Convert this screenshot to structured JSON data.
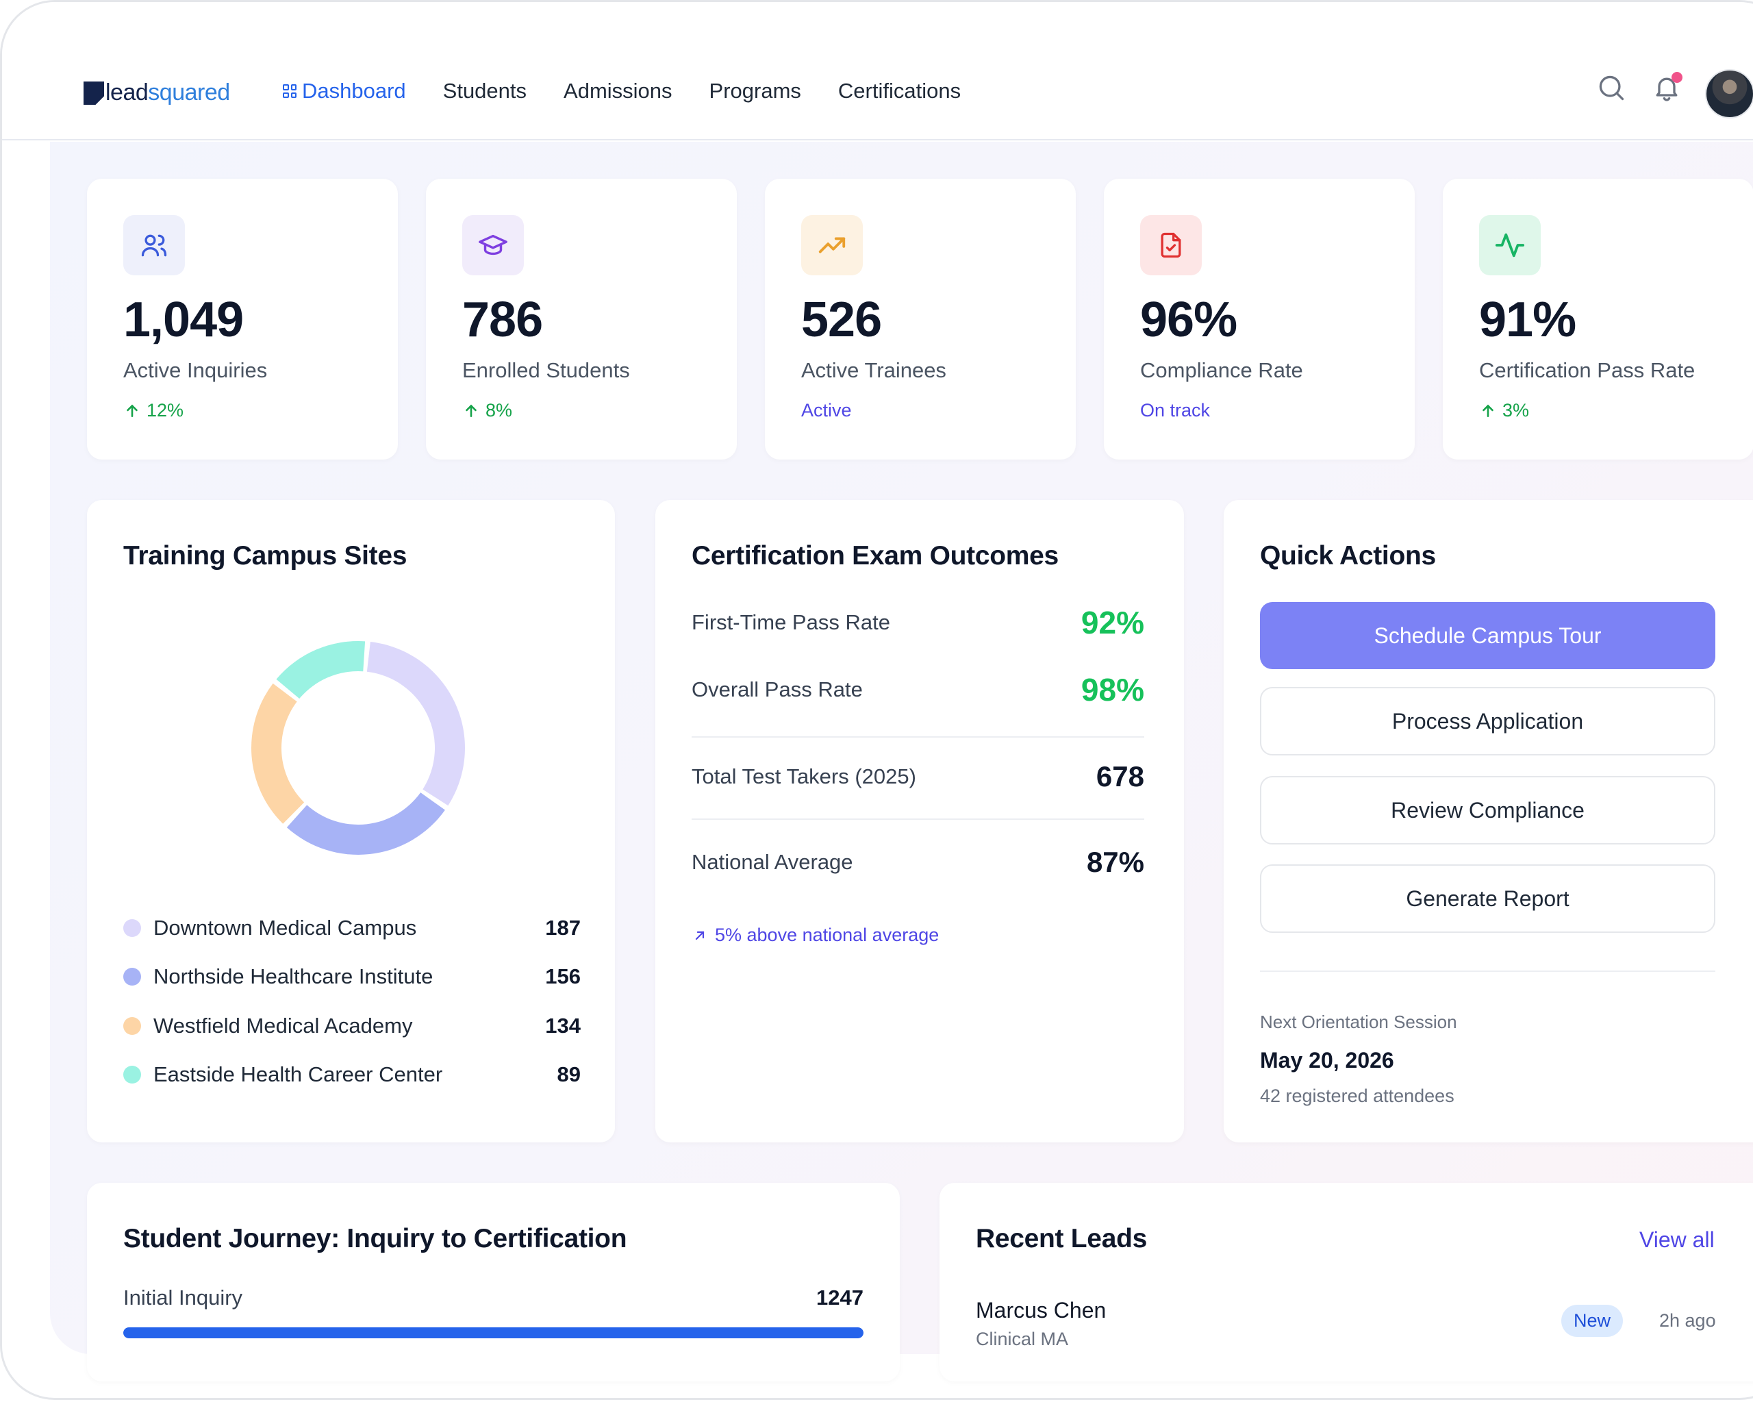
{
  "brand": {
    "logo_part1": "lead",
    "logo_part2": "squared"
  },
  "nav": {
    "items": [
      {
        "label": "Dashboard"
      },
      {
        "label": "Students"
      },
      {
        "label": "Admissions"
      },
      {
        "label": "Programs"
      },
      {
        "label": "Certifications"
      }
    ],
    "active": "Dashboard"
  },
  "header": {
    "icons": [
      "search-icon",
      "bell-icon"
    ],
    "has_notification": true
  },
  "kpis": [
    {
      "value": "1,049",
      "label": "Active Inquiries",
      "meta": "12%",
      "meta_type": "up",
      "icon": "users-icon",
      "icon_bg": "#eef0fb",
      "icon_color": "#3b5bdb"
    },
    {
      "value": "786",
      "label": "Enrolled Students",
      "meta": "8%",
      "meta_type": "up",
      "icon": "graduation-cap-icon",
      "icon_bg": "#f1ecfb",
      "icon_color": "#7e3fe0"
    },
    {
      "value": "526",
      "label": "Active Trainees",
      "meta": "Active",
      "meta_type": "status",
      "icon": "trending-up-icon",
      "icon_bg": "#fdf2e2",
      "icon_color": "#eaa02d"
    },
    {
      "value": "96%",
      "label": "Compliance Rate",
      "meta": "On track",
      "meta_type": "status",
      "icon": "file-check-icon",
      "icon_bg": "#fde6e6",
      "icon_color": "#e03131"
    },
    {
      "value": "91%",
      "label": "Certification Pass Rate",
      "meta": "3%",
      "meta_type": "up",
      "icon": "activity-icon",
      "icon_bg": "#dff7ea",
      "icon_color": "#17b464"
    }
  ],
  "campus": {
    "title": "Training Campus Sites",
    "sites": [
      {
        "name": "Downtown Medical Campus",
        "count": 187,
        "color": "#dcd8fb"
      },
      {
        "name": "Northside Healthcare Institute",
        "count": 156,
        "color": "#a7b3f6"
      },
      {
        "name": "Westfield Medical Academy",
        "count": 134,
        "color": "#fdd5a6"
      },
      {
        "name": "Eastside Health Career Center",
        "count": 89,
        "color": "#9af2e2"
      }
    ]
  },
  "exam": {
    "title": "Certification Exam Outcomes",
    "first_time_label": "First-Time Pass Rate",
    "first_time_value": "92%",
    "overall_label": "Overall Pass Rate",
    "overall_value": "98%",
    "takers_label": "Total Test Takers (2025)",
    "takers_value": "678",
    "national_label": "National Average",
    "national_value": "87%",
    "note": "5% above national average"
  },
  "quick_actions": {
    "title": "Quick Actions",
    "buttons": [
      "Schedule Campus Tour",
      "Process Application",
      "Review Compliance",
      "Generate Report"
    ],
    "next_label": "Next Orientation Session",
    "next_date": "May 20, 2026",
    "next_attendees": "42 registered attendees"
  },
  "journey": {
    "title": "Student Journey: Inquiry to Certification",
    "stages": [
      {
        "label": "Initial Inquiry",
        "value": "1247",
        "progress": 1.0
      }
    ]
  },
  "leads": {
    "title": "Recent Leads",
    "view_all": "View all",
    "items": [
      {
        "name": "Marcus Chen",
        "program": "Clinical MA",
        "badge": "New",
        "time": "2h ago"
      }
    ]
  },
  "colors": {
    "accent": "#2563eb",
    "primary_button": "#7c82f5",
    "positive": "#16a34a"
  }
}
